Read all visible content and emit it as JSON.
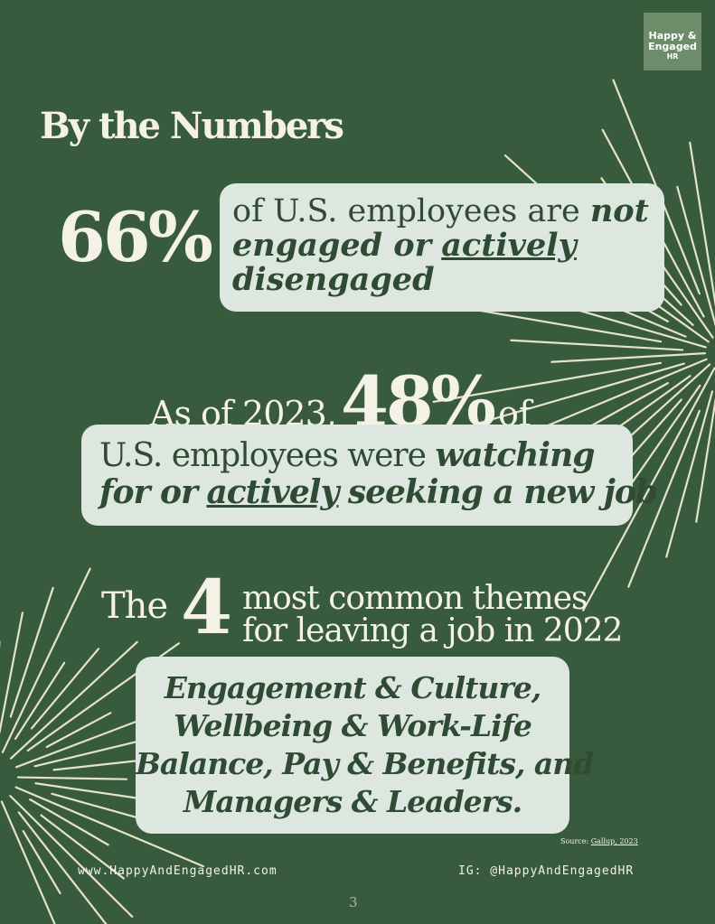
{
  "logo": {
    "line1": "Happy &",
    "line2": "Engaged",
    "line3": "HR"
  },
  "title": "By the Numbers",
  "stat1": {
    "number": "66%",
    "text1": "of U.S. employees are",
    "em1": "not",
    "text2": "engaged or",
    "em2": "actively",
    "text3": "disengaged"
  },
  "stat2": {
    "lead": "As of 2023,",
    "number": "48%",
    "tail": "of",
    "text1": "U.S. employees were",
    "em1": "watching",
    "em2": "for or",
    "em3": "actively",
    "em4": "seeking a new job"
  },
  "stat3": {
    "lead": "The",
    "number": "4",
    "line1": "most common themes",
    "line2": "for leaving a job in 2022",
    "themes": [
      "Engagement & Culture,",
      "Wellbeing & Work-Life",
      "Balance, Pay & Benefits, and",
      "Managers & Leaders."
    ]
  },
  "source": {
    "label": "Source:",
    "link": "Gallup, 2023"
  },
  "footer": {
    "website": "www.HappyAndEngagedHR.com",
    "instagram": "IG: @HappyAndEngagedHR",
    "page": "3"
  }
}
